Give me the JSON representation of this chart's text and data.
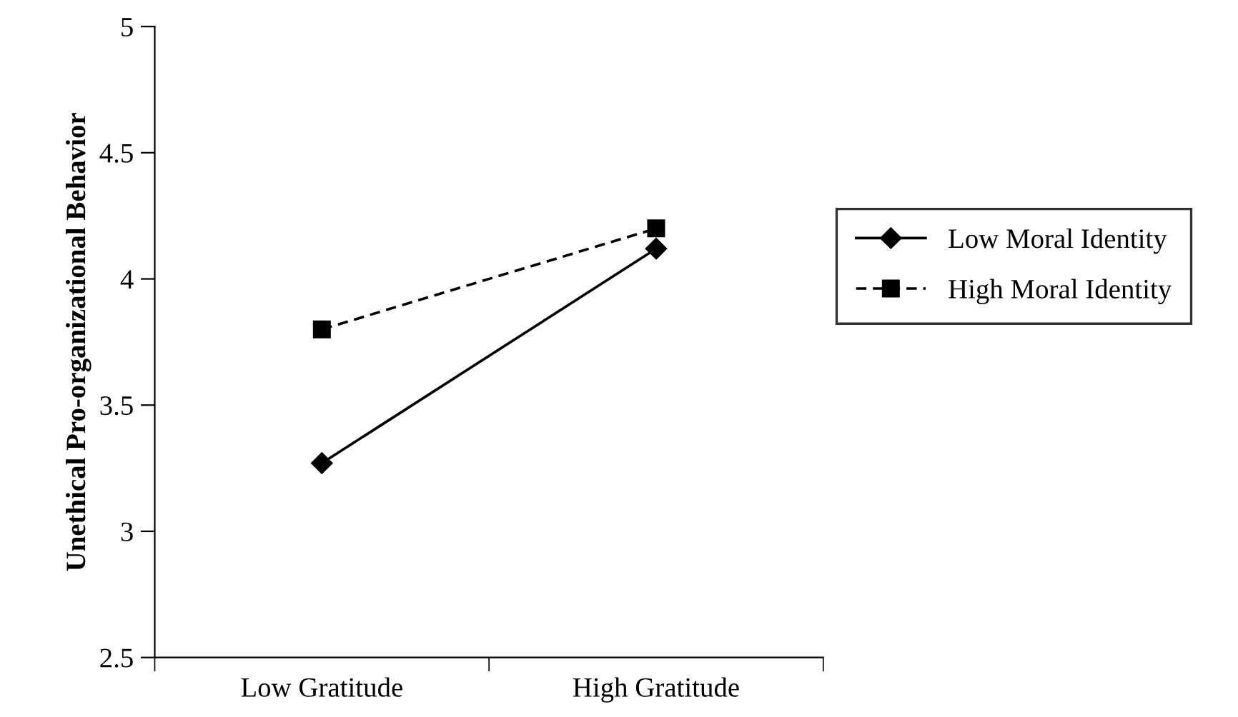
{
  "chart_data": {
    "type": "line",
    "ylabel": "Unethical Pro-organizational Behavior",
    "categories": [
      "Low Gratitude",
      "High Gratitude"
    ],
    "series": [
      {
        "name": "Low Moral Identity",
        "color": "#000000",
        "values": [
          3.27,
          4.12
        ],
        "marker": "diamond",
        "line_style": "solid"
      },
      {
        "name": "High Moral Identity",
        "color": "#000000",
        "values": [
          3.8,
          4.2
        ],
        "marker": "square",
        "line_style": "dashed"
      }
    ],
    "ylim": [
      2.5,
      5
    ],
    "yticks": [
      2.5,
      3,
      3.5,
      4,
      4.5,
      5
    ],
    "grid": false,
    "legend": "right"
  }
}
